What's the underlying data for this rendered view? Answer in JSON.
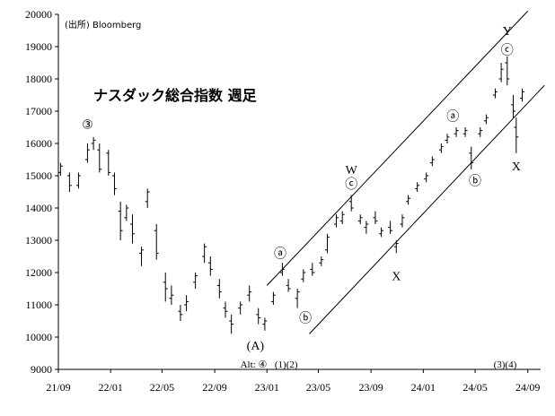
{
  "chart_data": {
    "type": "ohlc",
    "title": "ナスダック総合指数 週足",
    "source": "(出所) Bloomberg",
    "ylim": [
      9000,
      20000
    ],
    "yticks": [
      9000,
      10000,
      11000,
      12000,
      13000,
      14000,
      15000,
      16000,
      17000,
      18000,
      19000,
      20000
    ],
    "xticks": [
      "21/09",
      "22/01",
      "22/05",
      "22/09",
      "23/01",
      "23/05",
      "23/09",
      "24/01",
      "24/05",
      "24/09"
    ],
    "xrange": [
      "2021-09",
      "2024-10"
    ],
    "grid": false,
    "series": [
      {
        "values": [
          [
            "2021-09-06",
            15100,
            15400,
            15000,
            15300
          ],
          [
            "2021-09-27",
            15000,
            15100,
            14500,
            14700
          ],
          [
            "2021-10-18",
            14700,
            15100,
            14600,
            15000
          ],
          [
            "2021-11-08",
            15500,
            16000,
            15400,
            15800
          ],
          [
            "2021-11-22",
            16000,
            16200,
            15800,
            16100
          ],
          [
            "2021-12-06",
            15800,
            16000,
            15100,
            15200
          ],
          [
            "2021-12-27",
            15700,
            15800,
            15000,
            15100
          ],
          [
            "2022-01-10",
            15000,
            15100,
            14400,
            14600
          ],
          [
            "2022-01-24",
            13900,
            14200,
            13000,
            13300
          ],
          [
            "2022-02-07",
            13700,
            14100,
            13600,
            14000
          ],
          [
            "2022-02-21",
            13500,
            13800,
            12900,
            13200
          ],
          [
            "2022-03-14",
            12600,
            12800,
            12200,
            12700
          ],
          [
            "2022-03-28",
            14200,
            14600,
            14000,
            14500
          ],
          [
            "2022-04-18",
            13300,
            13500,
            12400,
            12600
          ],
          [
            "2022-05-09",
            11700,
            12000,
            11100,
            11500
          ],
          [
            "2022-05-23",
            11200,
            11600,
            11000,
            11300
          ],
          [
            "2022-06-13",
            10800,
            11000,
            10500,
            10700
          ],
          [
            "2022-06-27",
            11000,
            11300,
            10800,
            11100
          ],
          [
            "2022-07-18",
            11700,
            12000,
            11500,
            11900
          ],
          [
            "2022-08-08",
            12500,
            12900,
            12300,
            12800
          ],
          [
            "2022-08-22",
            12300,
            12500,
            11900,
            12100
          ],
          [
            "2022-09-12",
            11600,
            11800,
            11200,
            11400
          ],
          [
            "2022-09-26",
            10900,
            11100,
            10600,
            10800
          ],
          [
            "2022-10-10",
            10500,
            10700,
            10100,
            10400
          ],
          [
            "2022-10-31",
            10900,
            11100,
            10700,
            11000
          ],
          [
            "2022-11-21",
            11300,
            11600,
            11100,
            11400
          ],
          [
            "2022-12-12",
            10700,
            10900,
            10400,
            10600
          ],
          [
            "2022-12-27",
            10400,
            10600,
            10200,
            10500
          ],
          [
            "2023-01-16",
            11100,
            11400,
            11000,
            11300
          ],
          [
            "2023-02-06",
            12000,
            12300,
            11900,
            12100
          ],
          [
            "2023-02-20",
            11600,
            11800,
            11400,
            11500
          ],
          [
            "2023-03-13",
            11200,
            11500,
            10900,
            11400
          ],
          [
            "2023-03-27",
            11800,
            12100,
            11700,
            12000
          ],
          [
            "2023-04-17",
            12100,
            12300,
            11900,
            12000
          ],
          [
            "2023-05-08",
            12300,
            12500,
            12200,
            12400
          ],
          [
            "2023-05-22",
            12700,
            13200,
            12600,
            13100
          ],
          [
            "2023-06-12",
            13500,
            13800,
            13400,
            13700
          ],
          [
            "2023-06-26",
            13600,
            13900,
            13500,
            13800
          ],
          [
            "2023-07-17",
            14200,
            14400,
            13900,
            14000
          ],
          [
            "2023-08-07",
            13600,
            13800,
            13500,
            13700
          ],
          [
            "2023-08-21",
            13400,
            13600,
            13200,
            13500
          ],
          [
            "2023-09-11",
            13700,
            13900,
            13500,
            13600
          ],
          [
            "2023-09-25",
            13200,
            13400,
            13100,
            13300
          ],
          [
            "2023-10-16",
            13400,
            13600,
            13200,
            13300
          ],
          [
            "2023-10-30",
            12800,
            13000,
            12600,
            12900
          ],
          [
            "2023-11-13",
            13500,
            13800,
            13400,
            13700
          ],
          [
            "2023-11-27",
            14200,
            14400,
            14100,
            14300
          ],
          [
            "2023-12-18",
            14600,
            14800,
            14500,
            14700
          ],
          [
            "2024-01-08",
            14900,
            15100,
            14800,
            15000
          ],
          [
            "2024-01-22",
            15400,
            15600,
            15300,
            15500
          ],
          [
            "2024-02-12",
            15800,
            16000,
            15700,
            15900
          ],
          [
            "2024-02-26",
            16100,
            16300,
            16000,
            16200
          ],
          [
            "2024-03-18",
            16300,
            16500,
            16200,
            16400
          ],
          [
            "2024-04-08",
            16300,
            16500,
            16200,
            16400
          ],
          [
            "2024-04-22",
            15700,
            15900,
            15200,
            15400
          ],
          [
            "2024-05-13",
            16300,
            16500,
            16200,
            16400
          ],
          [
            "2024-05-27",
            16700,
            16900,
            16600,
            16800
          ],
          [
            "2024-06-17",
            17500,
            17700,
            17400,
            17600
          ],
          [
            "2024-07-01",
            18000,
            18500,
            17900,
            18300
          ],
          [
            "2024-07-15",
            18500,
            18700,
            17800,
            18000
          ],
          [
            "2024-07-29",
            17200,
            17500,
            16800,
            17000
          ],
          [
            "2024-08-05",
            16500,
            16800,
            15700,
            16200
          ],
          [
            "2024-08-19",
            17400,
            17700,
            17300,
            17600
          ]
        ]
      }
    ],
    "channels": [
      {
        "points": [
          [
            "2023-01-01",
            11600
          ],
          [
            "2024-09-01",
            20100
          ]
        ]
      },
      {
        "points": [
          [
            "2023-04-10",
            10100
          ],
          [
            "2024-10-10",
            17800
          ]
        ]
      }
    ],
    "annotations": [
      {
        "text": "③",
        "x": "2021-11-08",
        "y": 16600,
        "circled": true
      },
      {
        "text": "(A)",
        "x": "2022-12-05",
        "y": 9750
      },
      {
        "text": "Alt: ④",
        "x": "2022-12-01",
        "y": 9200
      },
      {
        "text": "(1)(2)",
        "x": "2023-02-15",
        "y": 9200
      },
      {
        "text": "ⓐ",
        "x": "2023-02-01",
        "y": 12600,
        "circled": true
      },
      {
        "text": "ⓑ",
        "x": "2023-04-01",
        "y": 10600,
        "circled": true
      },
      {
        "text": "W",
        "x": "2023-07-17",
        "y": 15200
      },
      {
        "text": "ⓒ",
        "x": "2023-07-17",
        "y": 14750,
        "circled": true
      },
      {
        "text": "X",
        "x": "2023-10-30",
        "y": 11900
      },
      {
        "text": "ⓐ",
        "x": "2024-03-10",
        "y": 16850,
        "circled": true
      },
      {
        "text": "ⓑ",
        "x": "2024-05-01",
        "y": 14850,
        "circled": true
      },
      {
        "text": "Y",
        "x": "2024-07-15",
        "y": 19500
      },
      {
        "text": "ⓒ",
        "x": "2024-07-15",
        "y": 18900,
        "circled": true
      },
      {
        "text": "X",
        "x": "2024-08-05",
        "y": 15300
      },
      {
        "text": "(3)(4)",
        "x": "2024-07-10",
        "y": 9200
      }
    ]
  }
}
